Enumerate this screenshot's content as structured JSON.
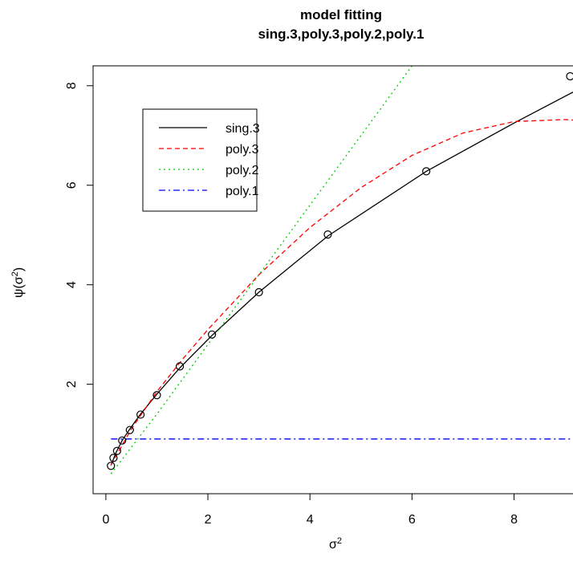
{
  "chart_data": {
    "type": "line",
    "title": "model fitting",
    "subtitle": "sing.3,poly.3,poly.2,poly.1",
    "xlabel": {
      "base": "σ",
      "sup": "2"
    },
    "ylabel": {
      "pre": "ψ(σ",
      "sup": "2",
      "post": ")"
    },
    "xlim": [
      -0.25,
      9.25
    ],
    "ylim": [
      -0.2,
      8.4
    ],
    "x_ticks": [
      0,
      2,
      4,
      6,
      8
    ],
    "y_ticks": [
      2,
      4,
      6,
      8
    ],
    "grid": false,
    "legend_position": "top-left",
    "points": {
      "x": [
        0.1,
        0.15,
        0.22,
        0.32,
        0.47,
        0.68,
        1.0,
        1.45,
        2.08,
        3.0,
        4.35,
        6.28,
        9.1
      ],
      "y": [
        0.36,
        0.52,
        0.66,
        0.87,
        1.08,
        1.39,
        1.78,
        2.36,
        3.0,
        3.85,
        5.01,
        6.28,
        8.19
      ]
    },
    "series": [
      {
        "name": "sing.3",
        "color": "#000000",
        "dash": "solid",
        "x": [
          0.1,
          0.2,
          0.32,
          0.47,
          0.68,
          1.0,
          1.45,
          2.08,
          3.0,
          4.35,
          6.28,
          8.0,
          9.3
        ],
        "y": [
          0.37,
          0.63,
          0.87,
          1.1,
          1.4,
          1.8,
          2.33,
          2.98,
          3.85,
          4.98,
          6.28,
          7.25,
          7.95
        ]
      },
      {
        "name": "poly.3",
        "color": "#ff0000",
        "dash": "6,4",
        "x": [
          0.1,
          0.5,
          1.0,
          1.5,
          2.0,
          3.0,
          4.0,
          5.0,
          6.0,
          7.0,
          8.0,
          9.0,
          9.3
        ],
        "y": [
          0.38,
          1.1,
          1.85,
          2.5,
          3.1,
          4.2,
          5.15,
          5.95,
          6.6,
          7.05,
          7.28,
          7.32,
          7.3
        ]
      },
      {
        "name": "poly.2",
        "color": "#00cc00",
        "dash": "2,4",
        "x": [
          0.1,
          1.0,
          2.0,
          3.0,
          4.0,
          5.0,
          6.0,
          6.4
        ],
        "y": [
          0.2,
          1.4,
          2.8,
          4.2,
          5.6,
          7.0,
          8.4,
          8.95
        ]
      },
      {
        "name": "poly.1",
        "color": "#0000ff",
        "dash": "8,4,2,4",
        "x": [
          0.1,
          9.3
        ],
        "y": [
          0.9,
          0.9
        ]
      }
    ]
  }
}
